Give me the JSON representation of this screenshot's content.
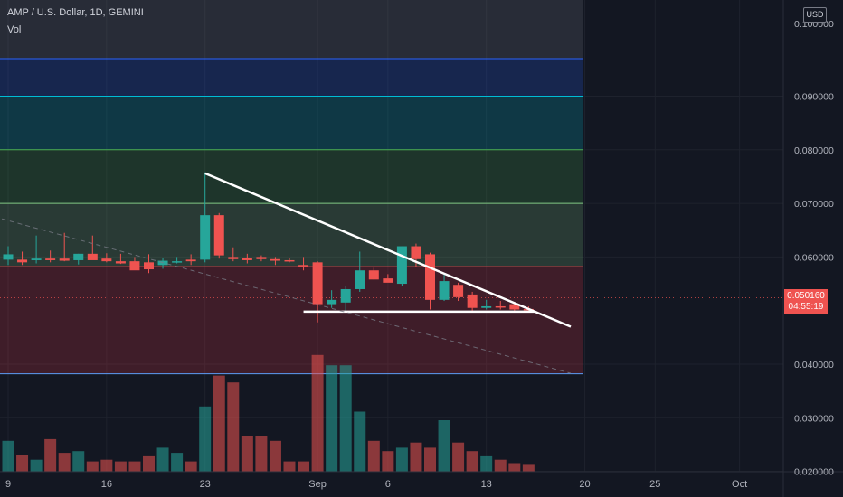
{
  "header": {
    "title": "AMP / U.S. Dollar, 1D, GEMINI",
    "indicator": "Vol"
  },
  "price_scale": {
    "currency": "USD",
    "ticks": [
      {
        "label": "0.090000",
        "value": 0.09
      },
      {
        "label": "0.080000",
        "value": 0.08
      },
      {
        "label": "0.070000",
        "value": 0.07
      },
      {
        "label": "0.060000",
        "value": 0.06
      },
      {
        "label": "0.040000",
        "value": 0.04
      },
      {
        "label": "0.030000",
        "value": 0.03
      },
      {
        "label": "0.020000",
        "value": 0.02
      }
    ],
    "top_partial_label": "0.100000"
  },
  "last_price": {
    "value": "0.050160",
    "countdown": "04:55:19"
  },
  "colors": {
    "background": "#131722",
    "up": "#26a69a",
    "down": "#ef5350",
    "up_volume": "#26a69a",
    "down_volume": "#ef5350"
  },
  "chart_data": {
    "type": "candlestick",
    "title": "AMP / U.S. Dollar, 1D, GEMINI",
    "x_tick_labels": [
      {
        "label": "9",
        "index": 0
      },
      {
        "label": "16",
        "index": 7
      },
      {
        "label": "23",
        "index": 14
      },
      {
        "label": "Sep",
        "index": 22
      },
      {
        "label": "6",
        "index": 27
      },
      {
        "label": "13",
        "index": 34
      },
      {
        "label": "20",
        "index": 41
      },
      {
        "label": "25",
        "index": 46
      },
      {
        "label": "Oct",
        "index": 52
      }
    ],
    "ylim": [
      0.0365,
      0.1
    ],
    "candles": [
      {
        "o": 0.0595,
        "h": 0.062,
        "l": 0.0585,
        "c": 0.0605
      },
      {
        "o": 0.0595,
        "h": 0.061,
        "l": 0.0585,
        "c": 0.059
      },
      {
        "o": 0.0594,
        "h": 0.064,
        "l": 0.0588,
        "c": 0.0597
      },
      {
        "o": 0.0597,
        "h": 0.0612,
        "l": 0.059,
        "c": 0.0594
      },
      {
        "o": 0.0597,
        "h": 0.0645,
        "l": 0.0592,
        "c": 0.0593
      },
      {
        "o": 0.0594,
        "h": 0.0606,
        "l": 0.0586,
        "c": 0.0606
      },
      {
        "o": 0.0606,
        "h": 0.064,
        "l": 0.0595,
        "c": 0.0594
      },
      {
        "o": 0.0597,
        "h": 0.0607,
        "l": 0.059,
        "c": 0.0592
      },
      {
        "o": 0.0592,
        "h": 0.0606,
        "l": 0.0587,
        "c": 0.0588
      },
      {
        "o": 0.0592,
        "h": 0.06,
        "l": 0.0576,
        "c": 0.0575
      },
      {
        "o": 0.059,
        "h": 0.0605,
        "l": 0.057,
        "c": 0.0577
      },
      {
        "o": 0.0585,
        "h": 0.0598,
        "l": 0.0578,
        "c": 0.0593
      },
      {
        "o": 0.0592,
        "h": 0.06,
        "l": 0.0588,
        "c": 0.0592
      },
      {
        "o": 0.0595,
        "h": 0.0605,
        "l": 0.0585,
        "c": 0.0592
      },
      {
        "o": 0.0595,
        "h": 0.0758,
        "l": 0.059,
        "c": 0.0678
      },
      {
        "o": 0.0678,
        "h": 0.0682,
        "l": 0.0597,
        "c": 0.0603
      },
      {
        "o": 0.06,
        "h": 0.0618,
        "l": 0.0592,
        "c": 0.0596
      },
      {
        "o": 0.0598,
        "h": 0.0606,
        "l": 0.0588,
        "c": 0.0594
      },
      {
        "o": 0.06,
        "h": 0.0603,
        "l": 0.0592,
        "c": 0.0596
      },
      {
        "o": 0.0596,
        "h": 0.06,
        "l": 0.0585,
        "c": 0.0593
      },
      {
        "o": 0.0594,
        "h": 0.0598,
        "l": 0.059,
        "c": 0.0592
      },
      {
        "o": 0.0585,
        "h": 0.06,
        "l": 0.0575,
        "c": 0.0584
      },
      {
        "o": 0.059,
        "h": 0.0592,
        "l": 0.0478,
        "c": 0.0512
      },
      {
        "o": 0.0512,
        "h": 0.0538,
        "l": 0.0505,
        "c": 0.052
      },
      {
        "o": 0.0515,
        "h": 0.0545,
        "l": 0.05,
        "c": 0.054
      },
      {
        "o": 0.054,
        "h": 0.061,
        "l": 0.0535,
        "c": 0.0575
      },
      {
        "o": 0.0575,
        "h": 0.058,
        "l": 0.0558,
        "c": 0.0558
      },
      {
        "o": 0.056,
        "h": 0.0568,
        "l": 0.0555,
        "c": 0.0552
      },
      {
        "o": 0.055,
        "h": 0.062,
        "l": 0.0545,
        "c": 0.062
      },
      {
        "o": 0.062,
        "h": 0.0625,
        "l": 0.0582,
        "c": 0.0596
      },
      {
        "o": 0.0605,
        "h": 0.0608,
        "l": 0.0502,
        "c": 0.052
      },
      {
        "o": 0.052,
        "h": 0.0568,
        "l": 0.0518,
        "c": 0.0555
      },
      {
        "o": 0.0548,
        "h": 0.0552,
        "l": 0.0518,
        "c": 0.0525
      },
      {
        "o": 0.053,
        "h": 0.0535,
        "l": 0.05,
        "c": 0.0505
      },
      {
        "o": 0.0505,
        "h": 0.052,
        "l": 0.0502,
        "c": 0.0508
      },
      {
        "o": 0.0508,
        "h": 0.0518,
        "l": 0.0502,
        "c": 0.0506
      },
      {
        "o": 0.0512,
        "h": 0.0515,
        "l": 0.05,
        "c": 0.0502
      },
      {
        "o": 0.0503,
        "h": 0.0508,
        "l": 0.05,
        "c": 0.0502
      }
    ],
    "volumes": [
      0.9,
      0.5,
      0.35,
      0.95,
      0.55,
      0.6,
      0.3,
      0.35,
      0.3,
      0.3,
      0.45,
      0.7,
      0.55,
      0.3,
      1.9,
      2.8,
      2.6,
      1.05,
      1.05,
      0.9,
      0.3,
      0.3,
      3.4,
      3.1,
      3.1,
      1.75,
      0.9,
      0.6,
      0.7,
      0.85,
      0.7,
      1.5,
      0.85,
      0.6,
      0.45,
      0.35,
      0.25,
      0.2
    ],
    "fib_levels": [
      {
        "price": 0.097,
        "color": "#2962ff"
      },
      {
        "price": 0.09,
        "color": "#00bcd4"
      },
      {
        "price": 0.08,
        "color": "#4caf50"
      },
      {
        "price": 0.07,
        "color": "#81c784"
      },
      {
        "price": 0.0582,
        "color": "#f23645"
      },
      {
        "price": 0.0382,
        "color": "#5b9cf6"
      }
    ],
    "trendlines": [
      {
        "from": {
          "i": 14,
          "p": 0.0756
        },
        "to": {
          "i": 40,
          "p": 0.047
        },
        "color": "#ffffff",
        "style": "solid"
      },
      {
        "from": {
          "i": 21,
          "p": 0.0498
        },
        "to": {
          "i": 37.5,
          "p": 0.0498
        },
        "color": "#ffffff",
        "style": "solid"
      },
      {
        "from": {
          "i": -1,
          "p": 0.0675
        },
        "to": {
          "i": 40,
          "p": 0.0383
        },
        "color": "#787b86",
        "style": "dashed"
      }
    ]
  }
}
